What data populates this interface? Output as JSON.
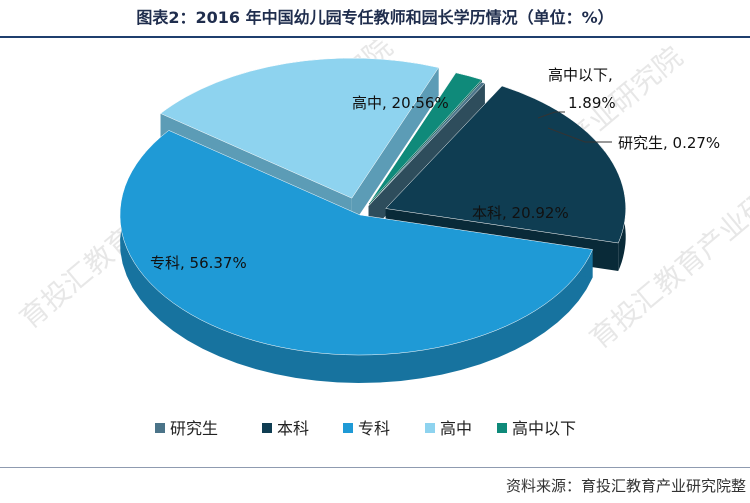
{
  "title": "图表2：2016 年中国幼儿园专任教师和园长学历情况（单位：%）",
  "source": "资料来源：育投汇教育产业研究院整",
  "watermark": "育投汇教育产业研究院",
  "chart_data": {
    "type": "pie",
    "style": "3d-exploded",
    "legend_position": "bottom",
    "slices": [
      {
        "name": "研究生",
        "value": 0.27,
        "label": "研究生, 0.27%",
        "top": "#4b7489",
        "side": "#2e4d5c"
      },
      {
        "name": "本科",
        "value": 20.92,
        "label": "本科, 20.92%",
        "top": "#0f3d52",
        "side": "#092a38"
      },
      {
        "name": "专科",
        "value": 56.37,
        "label": "专科, 56.37%",
        "top": "#1f9ad6",
        "side": "#17739f"
      },
      {
        "name": "高中",
        "value": 20.56,
        "label": "高中, 20.56%",
        "top": "#8ed3ef",
        "side": "#5c9cb6"
      },
      {
        "name": "高中以下",
        "value": 1.89,
        "label_line1": "高中以下,",
        "label_line2": "1.89%",
        "top": "#0f8a7a",
        "side": "#0a5e53"
      }
    ]
  }
}
